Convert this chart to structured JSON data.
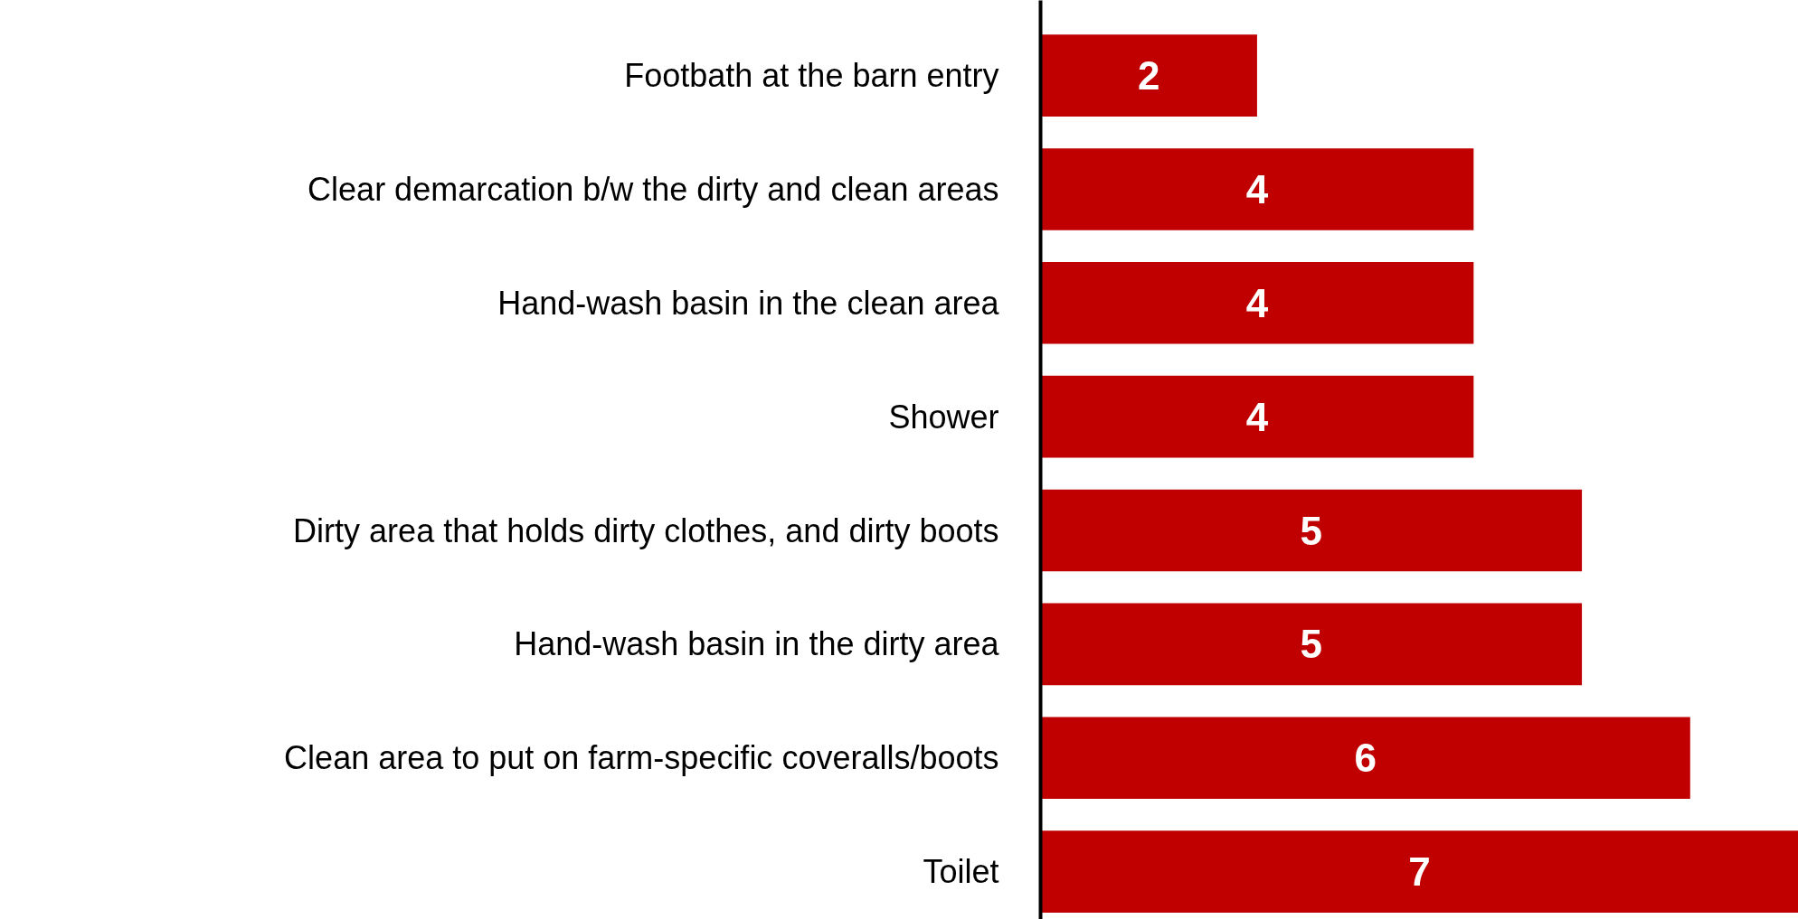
{
  "chart_data": {
    "type": "bar",
    "orientation": "horizontal",
    "categories": [
      "Footbath at the barn entry",
      "Clear demarcation b/w the dirty and clean areas",
      "Hand-wash basin in the clean area",
      "Shower",
      "Dirty area that holds dirty clothes, and dirty boots",
      "Hand-wash basin in the dirty area",
      "Clean area to put on farm-specific coveralls/boots",
      "Toilet"
    ],
    "values": [
      2,
      4,
      4,
      4,
      5,
      5,
      6,
      7
    ],
    "color": "#c00000",
    "data_labels": true,
    "grid": false
  }
}
